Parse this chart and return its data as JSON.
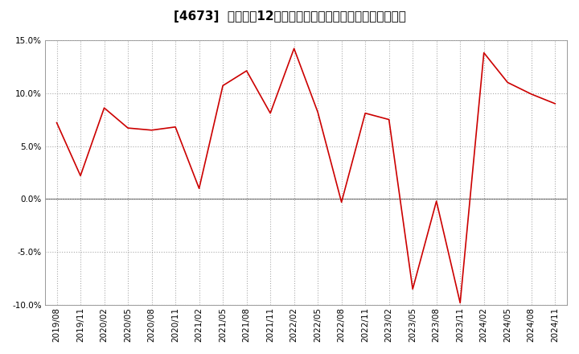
{
  "title": "[4673]  売上高の12か月移動合計の対前年同期増減率の推移",
  "x_labels": [
    "2019/08",
    "2019/11",
    "2020/02",
    "2020/05",
    "2020/08",
    "2020/11",
    "2021/02",
    "2021/05",
    "2021/08",
    "2021/11",
    "2022/02",
    "2022/05",
    "2022/08",
    "2022/11",
    "2023/02",
    "2023/05",
    "2023/08",
    "2023/11",
    "2024/02",
    "2024/05",
    "2024/08",
    "2024/11"
  ],
  "values": [
    7.2,
    2.2,
    8.6,
    6.7,
    6.5,
    6.8,
    1.0,
    10.7,
    12.1,
    8.1,
    14.2,
    8.2,
    -0.3,
    8.1,
    7.5,
    -8.5,
    -0.2,
    -9.8,
    13.8,
    11.0,
    9.9,
    9.0
  ],
  "line_color": "#cc0000",
  "background_color": "#ffffff",
  "grid_color": "#aaaaaa",
  "ylim": [
    -10.0,
    15.0
  ],
  "yticks": [
    -10.0,
    -5.0,
    0.0,
    5.0,
    10.0,
    15.0
  ],
  "title_fontsize": 11,
  "axis_fontsize": 7.5
}
